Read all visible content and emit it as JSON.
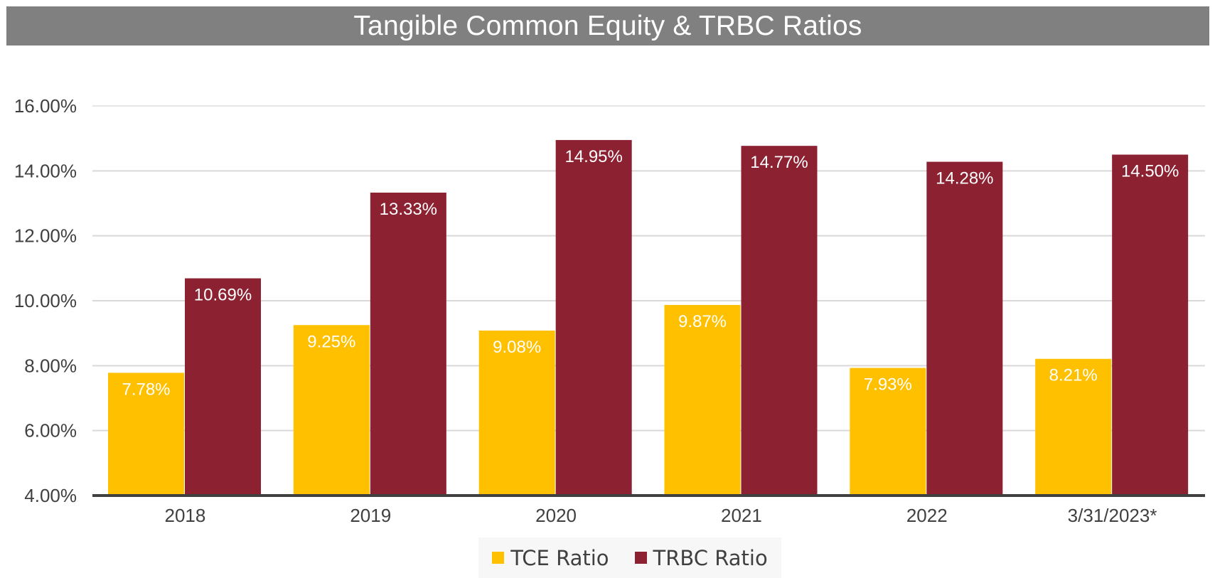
{
  "chart_data": {
    "type": "bar",
    "title": "Tangible Common Equity & TRBC Ratios",
    "xlabel": "",
    "ylabel": "",
    "categories": [
      "2018",
      "2019",
      "2020",
      "2021",
      "2022",
      "3/31/2023*"
    ],
    "series": [
      {
        "name": "TCE Ratio",
        "color": "#FFC000",
        "values": [
          7.78,
          9.25,
          9.08,
          9.87,
          7.93,
          8.21
        ],
        "labels": [
          "7.78%",
          "9.25%",
          "9.08%",
          "9.87%",
          "7.93%",
          "8.21%"
        ]
      },
      {
        "name": "TRBC Ratio",
        "color": "#8B2131",
        "values": [
          10.69,
          13.33,
          14.95,
          14.77,
          14.28,
          14.5
        ],
        "labels": [
          "10.69%",
          "13.33%",
          "14.95%",
          "14.77%",
          "14.28%",
          "14.50%"
        ]
      }
    ],
    "ylim": [
      4,
      16
    ],
    "yticks": [
      4,
      6,
      8,
      10,
      12,
      14,
      16
    ],
    "ytick_labels": [
      "4.00%",
      "6.00%",
      "8.00%",
      "10.00%",
      "12.00%",
      "14.00%",
      "16.00%"
    ],
    "grid": true,
    "legend": "bottom"
  }
}
